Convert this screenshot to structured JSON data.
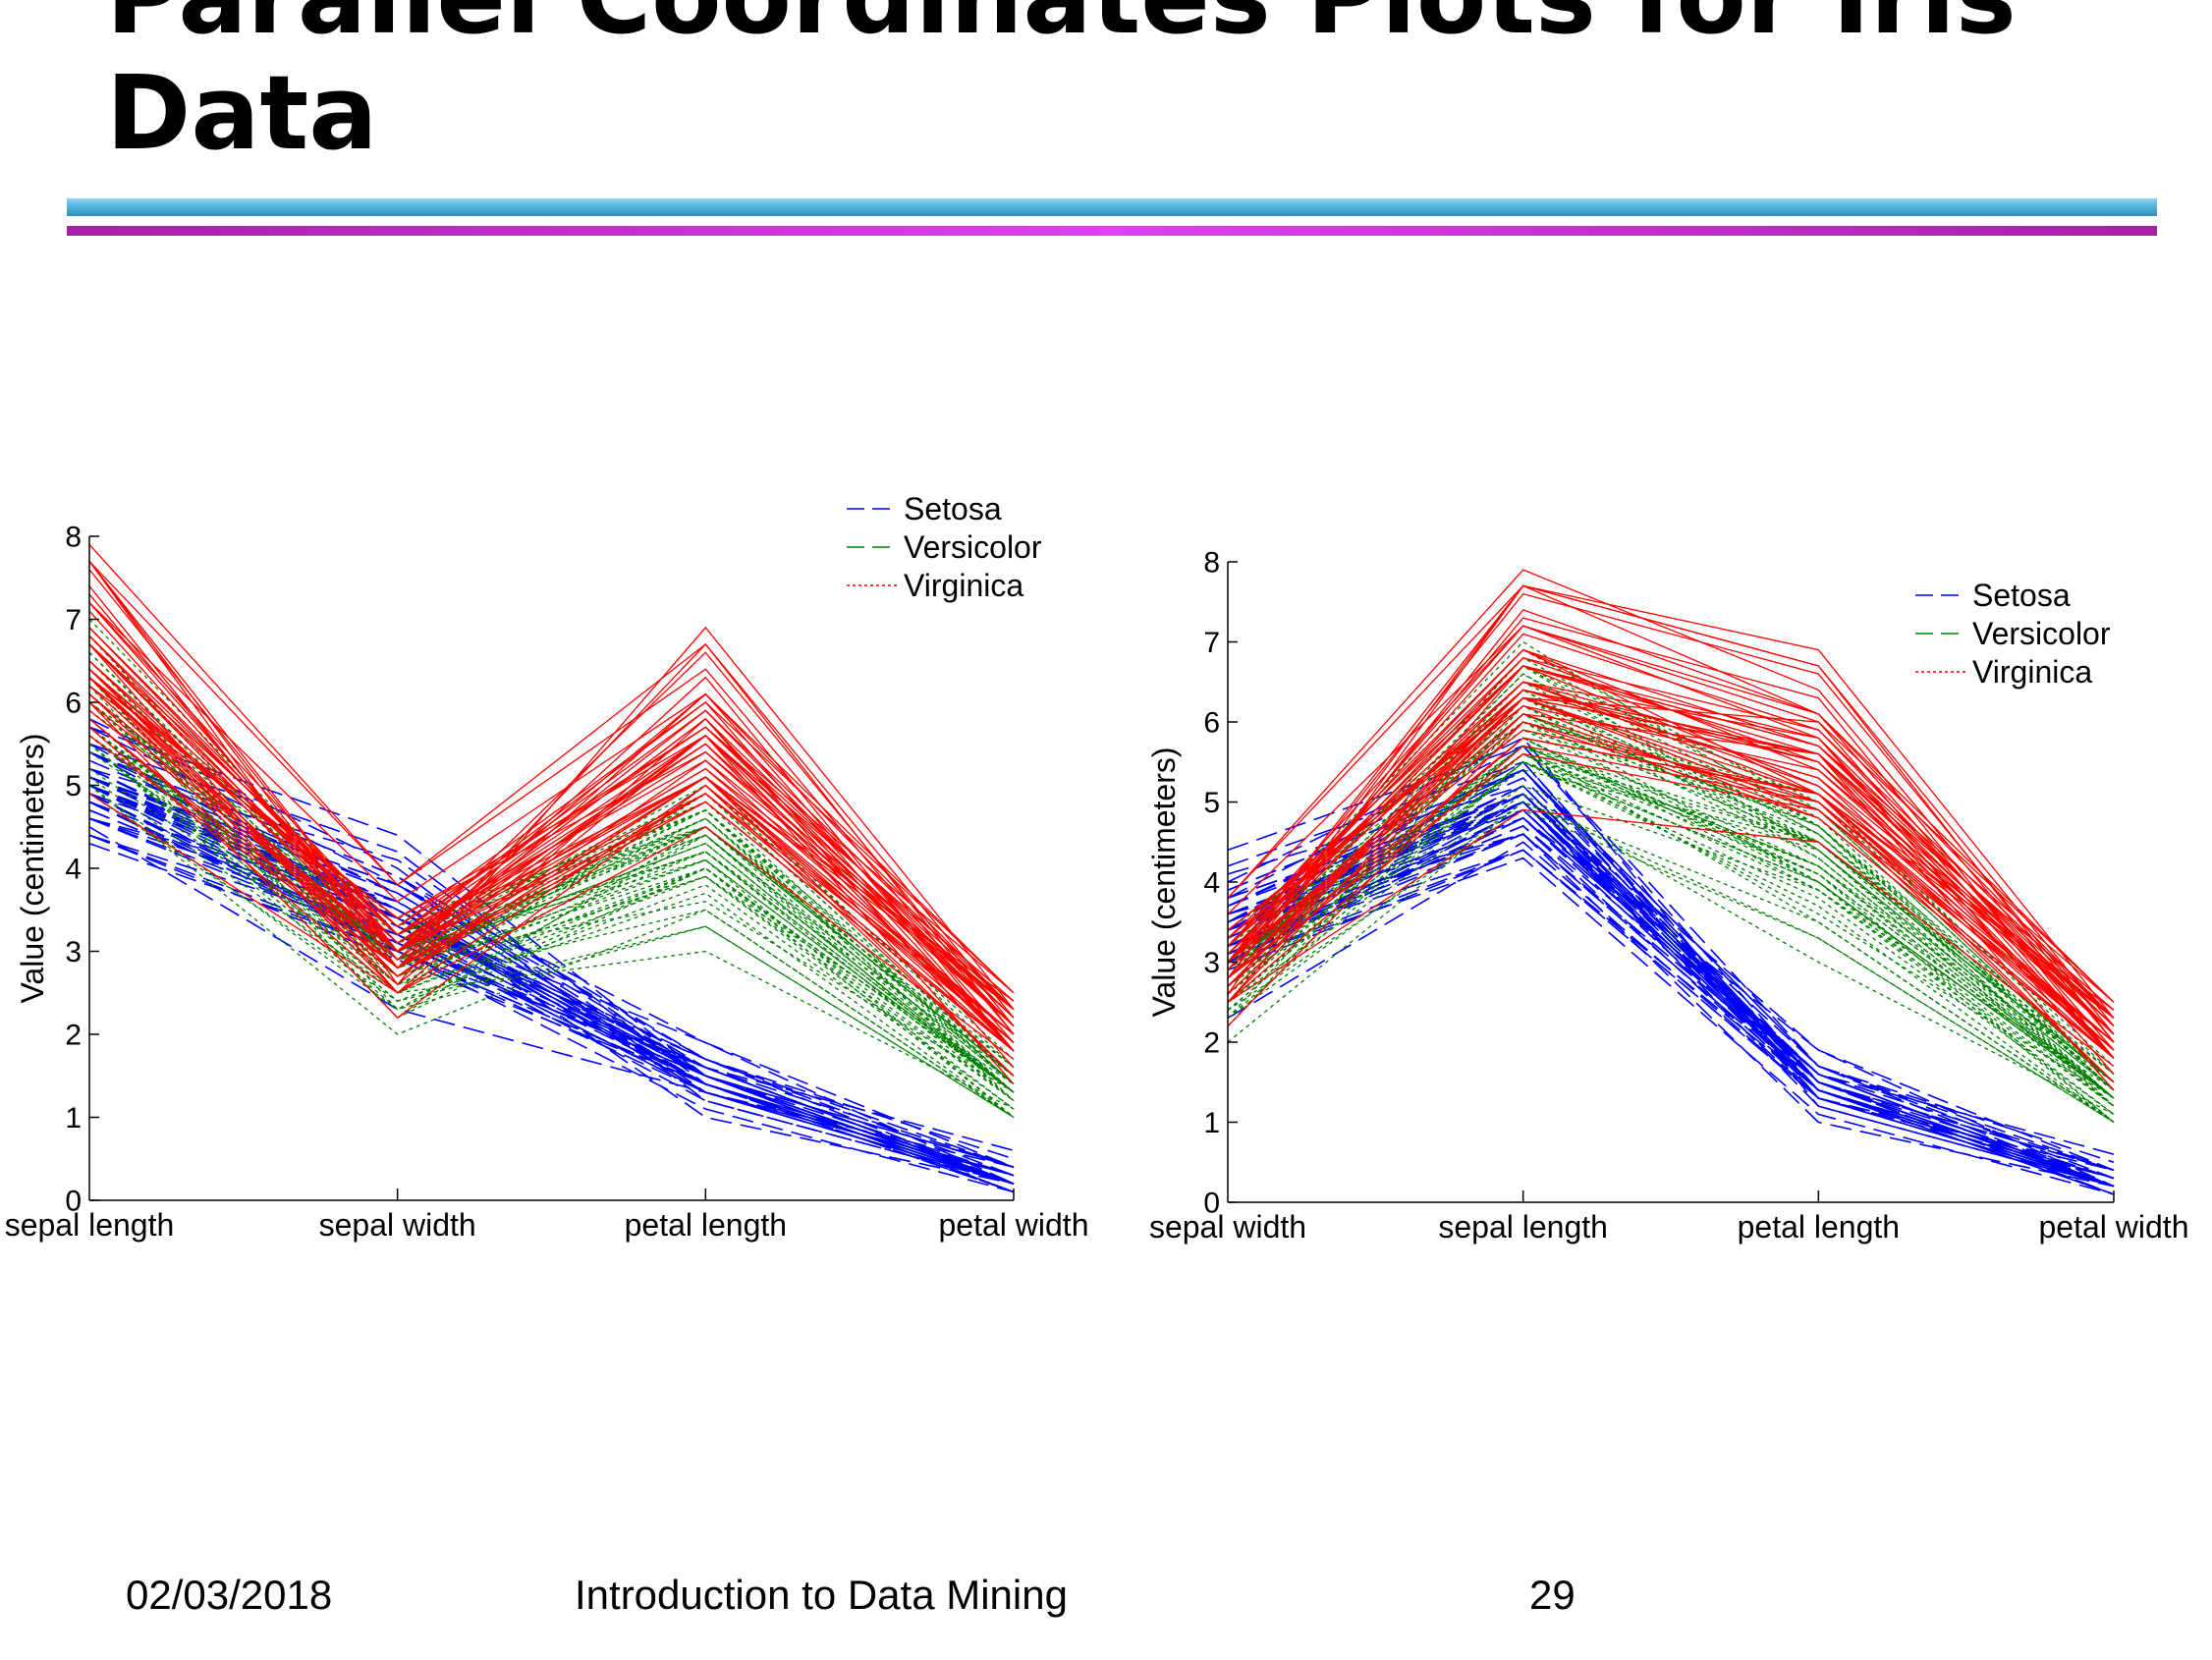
{
  "slide": {
    "title": "Parallel Coordinates Plots for Iris\nData",
    "rule_cyan": "#4fb3d9",
    "rule_magenta_edge": "#a61fa6",
    "rule_magenta_center": "#e040f0"
  },
  "footer": {
    "date": "02/03/2018",
    "course": "Introduction to Data Mining",
    "page": "29"
  },
  "series_colors": {
    "Setosa": "#0000ff",
    "Versicolor": "#008000",
    "Virginica": "#ff0000"
  },
  "chart_data": [
    {
      "type": "line",
      "chart_style": "parallel-coordinates",
      "title": "",
      "xlabel": "",
      "ylabel": "Value (centimeters)",
      "categories": [
        "sepal length",
        "sepal width",
        "petal length",
        "petal width"
      ],
      "ylim": [
        0,
        8
      ],
      "yticks": [
        0,
        1,
        2,
        3,
        4,
        5,
        6,
        7,
        8
      ],
      "grid": false,
      "legend": "top-right",
      "legend_entries": [
        "Setosa",
        "Versicolor",
        "Virginica"
      ],
      "series": [
        {
          "name": "Setosa",
          "line_style": "dashed",
          "values": [
            [
              5.1,
              3.5,
              1.4,
              0.2
            ],
            [
              4.9,
              3.0,
              1.4,
              0.2
            ],
            [
              4.7,
              3.2,
              1.3,
              0.2
            ],
            [
              4.6,
              3.1,
              1.5,
              0.2
            ],
            [
              5.0,
              3.6,
              1.4,
              0.2
            ],
            [
              5.4,
              3.9,
              1.7,
              0.4
            ],
            [
              4.6,
              3.4,
              1.4,
              0.3
            ],
            [
              5.0,
              3.4,
              1.5,
              0.2
            ],
            [
              4.4,
              2.9,
              1.4,
              0.2
            ],
            [
              4.9,
              3.1,
              1.5,
              0.1
            ],
            [
              5.4,
              3.7,
              1.5,
              0.2
            ],
            [
              4.8,
              3.4,
              1.6,
              0.2
            ],
            [
              4.8,
              3.0,
              1.4,
              0.1
            ],
            [
              4.3,
              3.0,
              1.1,
              0.1
            ],
            [
              5.8,
              4.0,
              1.2,
              0.2
            ],
            [
              5.7,
              4.4,
              1.5,
              0.4
            ],
            [
              5.4,
              3.9,
              1.3,
              0.4
            ],
            [
              5.1,
              3.5,
              1.4,
              0.3
            ],
            [
              5.7,
              3.8,
              1.7,
              0.3
            ],
            [
              5.1,
              3.8,
              1.5,
              0.3
            ],
            [
              5.4,
              3.4,
              1.7,
              0.2
            ],
            [
              5.1,
              3.7,
              1.5,
              0.4
            ],
            [
              4.6,
              3.6,
              1.0,
              0.2
            ],
            [
              5.1,
              3.3,
              1.7,
              0.5
            ],
            [
              4.8,
              3.4,
              1.9,
              0.2
            ],
            [
              5.0,
              3.0,
              1.6,
              0.2
            ],
            [
              5.0,
              3.4,
              1.6,
              0.4
            ],
            [
              5.2,
              3.5,
              1.5,
              0.2
            ],
            [
              5.2,
              3.4,
              1.4,
              0.2
            ],
            [
              4.7,
              3.2,
              1.6,
              0.2
            ],
            [
              4.8,
              3.1,
              1.6,
              0.2
            ],
            [
              5.4,
              3.4,
              1.5,
              0.4
            ],
            [
              5.2,
              4.1,
              1.5,
              0.1
            ],
            [
              5.5,
              4.2,
              1.4,
              0.2
            ],
            [
              4.9,
              3.1,
              1.5,
              0.2
            ],
            [
              5.0,
              3.2,
              1.2,
              0.2
            ],
            [
              5.5,
              3.5,
              1.3,
              0.2
            ],
            [
              4.9,
              3.6,
              1.4,
              0.1
            ],
            [
              4.4,
              3.0,
              1.3,
              0.2
            ],
            [
              5.1,
              3.4,
              1.5,
              0.2
            ],
            [
              5.0,
              3.5,
              1.3,
              0.3
            ],
            [
              4.5,
              2.3,
              1.3,
              0.3
            ],
            [
              4.4,
              3.2,
              1.3,
              0.2
            ],
            [
              5.0,
              3.5,
              1.6,
              0.6
            ],
            [
              5.1,
              3.8,
              1.9,
              0.4
            ],
            [
              4.8,
              3.0,
              1.4,
              0.3
            ],
            [
              5.1,
              3.8,
              1.6,
              0.2
            ],
            [
              4.6,
              3.2,
              1.4,
              0.2
            ],
            [
              5.3,
              3.7,
              1.5,
              0.2
            ],
            [
              5.0,
              3.3,
              1.4,
              0.2
            ]
          ]
        },
        {
          "name": "Versicolor",
          "line_style": "dotted",
          "values": [
            [
              7.0,
              3.2,
              4.7,
              1.4
            ],
            [
              6.4,
              3.2,
              4.5,
              1.5
            ],
            [
              6.9,
              3.1,
              4.9,
              1.5
            ],
            [
              5.5,
              2.3,
              4.0,
              1.3
            ],
            [
              6.5,
              2.8,
              4.6,
              1.5
            ],
            [
              5.7,
              2.8,
              4.5,
              1.3
            ],
            [
              6.3,
              3.3,
              4.7,
              1.6
            ],
            [
              4.9,
              2.4,
              3.3,
              1.0
            ],
            [
              6.6,
              2.9,
              4.6,
              1.3
            ],
            [
              5.2,
              2.7,
              3.9,
              1.4
            ],
            [
              5.0,
              2.0,
              3.5,
              1.0
            ],
            [
              5.9,
              3.0,
              4.2,
              1.5
            ],
            [
              6.0,
              2.2,
              4.0,
              1.0
            ],
            [
              6.1,
              2.9,
              4.7,
              1.4
            ],
            [
              5.6,
              2.9,
              3.6,
              1.3
            ],
            [
              6.7,
              3.1,
              4.4,
              1.4
            ],
            [
              5.6,
              3.0,
              4.5,
              1.5
            ],
            [
              5.8,
              2.7,
              4.1,
              1.0
            ],
            [
              6.2,
              2.2,
              4.5,
              1.5
            ],
            [
              5.6,
              2.5,
              3.9,
              1.1
            ],
            [
              5.9,
              3.2,
              4.8,
              1.8
            ],
            [
              6.1,
              2.8,
              4.0,
              1.3
            ],
            [
              6.3,
              2.5,
              4.9,
              1.5
            ],
            [
              6.1,
              2.8,
              4.7,
              1.2
            ],
            [
              6.4,
              2.9,
              4.3,
              1.3
            ],
            [
              6.6,
              3.0,
              4.4,
              1.4
            ],
            [
              6.8,
              2.8,
              4.8,
              1.4
            ],
            [
              6.7,
              3.0,
              5.0,
              1.7
            ],
            [
              6.0,
              2.9,
              4.5,
              1.5
            ],
            [
              5.7,
              2.6,
              3.5,
              1.0
            ],
            [
              5.5,
              2.4,
              3.8,
              1.1
            ],
            [
              5.5,
              2.4,
              3.7,
              1.0
            ],
            [
              5.8,
              2.7,
              3.9,
              1.2
            ],
            [
              6.0,
              2.7,
              5.1,
              1.6
            ],
            [
              5.4,
              3.0,
              4.5,
              1.5
            ],
            [
              6.0,
              3.4,
              4.5,
              1.6
            ],
            [
              6.7,
              3.1,
              4.7,
              1.5
            ],
            [
              6.3,
              2.3,
              4.4,
              1.3
            ],
            [
              5.6,
              3.0,
              4.1,
              1.3
            ],
            [
              5.5,
              2.5,
              4.0,
              1.3
            ],
            [
              5.5,
              2.6,
              4.4,
              1.2
            ],
            [
              6.1,
              3.0,
              4.6,
              1.4
            ],
            [
              5.8,
              2.6,
              4.0,
              1.2
            ],
            [
              5.0,
              2.3,
              3.3,
              1.0
            ],
            [
              5.6,
              2.7,
              4.2,
              1.3
            ],
            [
              5.7,
              3.0,
              4.2,
              1.2
            ],
            [
              5.7,
              2.9,
              4.2,
              1.3
            ],
            [
              6.2,
              2.9,
              4.3,
              1.3
            ],
            [
              5.1,
              2.5,
              3.0,
              1.1
            ],
            [
              5.7,
              2.8,
              4.1,
              1.3
            ]
          ]
        },
        {
          "name": "Virginica",
          "line_style": "solid",
          "values": [
            [
              6.3,
              3.3,
              6.0,
              2.5
            ],
            [
              5.8,
              2.7,
              5.1,
              1.9
            ],
            [
              7.1,
              3.0,
              5.9,
              2.1
            ],
            [
              6.3,
              2.9,
              5.6,
              1.8
            ],
            [
              6.5,
              3.0,
              5.8,
              2.2
            ],
            [
              7.6,
              3.0,
              6.6,
              2.1
            ],
            [
              4.9,
              2.5,
              4.5,
              1.7
            ],
            [
              7.3,
              2.9,
              6.3,
              1.8
            ],
            [
              6.7,
              2.5,
              5.8,
              1.8
            ],
            [
              7.2,
              3.6,
              6.1,
              2.5
            ],
            [
              6.5,
              3.2,
              5.1,
              2.0
            ],
            [
              6.4,
              2.7,
              5.3,
              1.9
            ],
            [
              6.8,
              3.0,
              5.5,
              2.1
            ],
            [
              5.7,
              2.5,
              5.0,
              2.0
            ],
            [
              5.8,
              2.8,
              5.1,
              2.4
            ],
            [
              6.4,
              3.2,
              5.3,
              2.3
            ],
            [
              6.5,
              3.0,
              5.5,
              1.8
            ],
            [
              7.7,
              3.8,
              6.7,
              2.2
            ],
            [
              7.7,
              2.6,
              6.9,
              2.3
            ],
            [
              6.0,
              2.2,
              5.0,
              1.5
            ],
            [
              6.9,
              3.2,
              5.7,
              2.3
            ],
            [
              5.6,
              2.8,
              4.9,
              2.0
            ],
            [
              7.7,
              2.8,
              6.7,
              2.0
            ],
            [
              6.3,
              2.7,
              4.9,
              1.8
            ],
            [
              6.7,
              3.3,
              5.7,
              2.1
            ],
            [
              7.2,
              3.2,
              6.0,
              1.8
            ],
            [
              6.2,
              2.8,
              4.8,
              1.8
            ],
            [
              6.1,
              3.0,
              4.9,
              1.8
            ],
            [
              6.4,
              2.8,
              5.6,
              2.1
            ],
            [
              7.2,
              3.0,
              5.8,
              1.6
            ],
            [
              7.4,
              2.8,
              6.1,
              1.9
            ],
            [
              7.9,
              3.8,
              6.4,
              2.0
            ],
            [
              6.4,
              2.8,
              5.6,
              2.2
            ],
            [
              6.3,
              2.8,
              5.1,
              1.5
            ],
            [
              6.1,
              2.6,
              5.6,
              1.4
            ],
            [
              7.7,
              3.0,
              6.1,
              2.3
            ],
            [
              6.3,
              3.4,
              5.6,
              2.4
            ],
            [
              6.4,
              3.1,
              5.5,
              1.8
            ],
            [
              6.0,
              3.0,
              4.8,
              1.8
            ],
            [
              6.9,
              3.1,
              5.4,
              2.1
            ],
            [
              6.7,
              3.1,
              5.6,
              2.4
            ],
            [
              6.9,
              3.1,
              5.1,
              2.3
            ],
            [
              5.8,
              2.7,
              5.1,
              1.9
            ],
            [
              6.8,
              3.2,
              5.9,
              2.3
            ],
            [
              6.7,
              3.3,
              5.7,
              2.5
            ],
            [
              6.7,
              3.0,
              5.2,
              2.3
            ],
            [
              6.3,
              2.5,
              5.0,
              1.9
            ],
            [
              6.5,
              3.0,
              5.2,
              2.0
            ],
            [
              6.2,
              3.4,
              5.4,
              2.3
            ],
            [
              5.9,
              3.0,
              5.1,
              1.8
            ]
          ]
        }
      ]
    },
    {
      "type": "line",
      "chart_style": "parallel-coordinates",
      "title": "",
      "xlabel": "",
      "ylabel": "Value (centimeters)",
      "categories": [
        "sepal width",
        "sepal length",
        "petal length",
        "petal width"
      ],
      "axis_order_from_left_chart": [
        1,
        0,
        2,
        3
      ],
      "ylim": [
        0,
        8
      ],
      "yticks": [
        0,
        1,
        2,
        3,
        4,
        5,
        6,
        7,
        8
      ],
      "grid": false,
      "legend": "top-right",
      "legend_entries": [
        "Setosa",
        "Versicolor",
        "Virginica"
      ]
    }
  ]
}
